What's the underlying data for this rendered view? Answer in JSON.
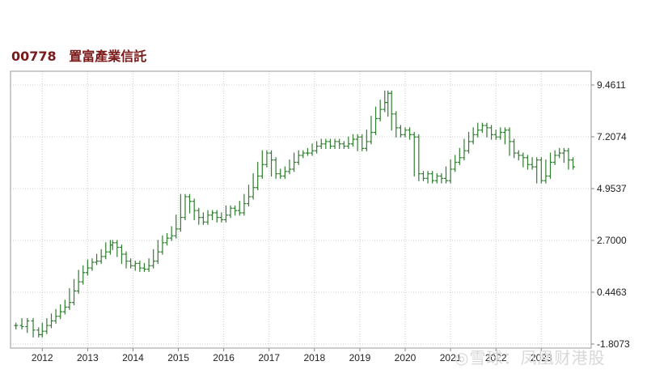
{
  "header": {
    "code": "00778",
    "name": "置富產業信託"
  },
  "watermark": "◎雪球：凤凰财港股",
  "colors": {
    "line": "#2f7d2f",
    "grid": "#cccccc",
    "axis": "#888888",
    "title": "#7a1a1a"
  },
  "chart_data": {
    "type": "line",
    "style": "OHLC bars",
    "title": "",
    "xlabel": "",
    "ylabel": "",
    "x_ticks": [
      "2012",
      "2013",
      "2014",
      "2015",
      "2016",
      "2017",
      "2018",
      "2019",
      "2020",
      "2021",
      "2022",
      "2023"
    ],
    "y_ticks": [
      "9.4611",
      "7.2074",
      "4.9537",
      "2.7000",
      "0.4463",
      "-1.8073"
    ],
    "ylim": [
      -1.8073,
      9.4611
    ],
    "xlim": [
      2011.3,
      2024.1
    ],
    "grid": true,
    "y_axis_position": "right",
    "series": [
      {
        "values": [
          [
            2011.42,
            -1.0
          ],
          [
            2011.55,
            -1.05
          ],
          [
            2011.67,
            -0.8
          ],
          [
            2011.8,
            -1.2
          ],
          [
            2011.92,
            -1.4
          ],
          [
            2012.0,
            -1.25
          ],
          [
            2012.1,
            -1.0
          ],
          [
            2012.2,
            -0.8
          ],
          [
            2012.3,
            -0.6
          ],
          [
            2012.4,
            -0.4
          ],
          [
            2012.5,
            -0.2
          ],
          [
            2012.6,
            0.0
          ],
          [
            2012.7,
            0.5
          ],
          [
            2012.8,
            0.9
          ],
          [
            2012.9,
            1.3
          ],
          [
            2013.0,
            1.5
          ],
          [
            2013.1,
            1.75
          ],
          [
            2013.2,
            1.8
          ],
          [
            2013.3,
            2.0
          ],
          [
            2013.4,
            2.2
          ],
          [
            2013.5,
            2.5
          ],
          [
            2013.55,
            2.6
          ],
          [
            2013.65,
            2.4
          ],
          [
            2013.75,
            2.1
          ],
          [
            2013.85,
            1.8
          ],
          [
            2013.95,
            1.6
          ],
          [
            2014.05,
            1.7
          ],
          [
            2014.15,
            1.5
          ],
          [
            2014.25,
            1.45
          ],
          [
            2014.35,
            1.6
          ],
          [
            2014.45,
            1.8
          ],
          [
            2014.55,
            2.2
          ],
          [
            2014.65,
            2.6
          ],
          [
            2014.75,
            2.8
          ],
          [
            2014.85,
            2.9
          ],
          [
            2014.95,
            3.2
          ],
          [
            2015.05,
            3.7
          ],
          [
            2015.15,
            4.6
          ],
          [
            2015.25,
            4.4
          ],
          [
            2015.35,
            4.0
          ],
          [
            2015.45,
            3.7
          ],
          [
            2015.55,
            3.5
          ],
          [
            2015.65,
            3.8
          ],
          [
            2015.75,
            3.9
          ],
          [
            2015.85,
            3.7
          ],
          [
            2015.95,
            3.6
          ],
          [
            2016.05,
            3.8
          ],
          [
            2016.15,
            4.1
          ],
          [
            2016.25,
            4.0
          ],
          [
            2016.35,
            3.9
          ],
          [
            2016.45,
            4.3
          ],
          [
            2016.55,
            4.6
          ],
          [
            2016.65,
            5.0
          ],
          [
            2016.75,
            5.5
          ],
          [
            2016.85,
            6.0
          ],
          [
            2016.95,
            6.5
          ],
          [
            2017.05,
            6.2
          ],
          [
            2017.15,
            5.6
          ],
          [
            2017.25,
            5.5
          ],
          [
            2017.35,
            5.7
          ],
          [
            2017.45,
            5.8
          ],
          [
            2017.55,
            6.1
          ],
          [
            2017.65,
            6.4
          ],
          [
            2017.75,
            6.5
          ],
          [
            2017.85,
            6.5
          ],
          [
            2017.95,
            6.6
          ],
          [
            2018.05,
            6.8
          ],
          [
            2018.15,
            6.9
          ],
          [
            2018.25,
            7.0
          ],
          [
            2018.35,
            6.8
          ],
          [
            2018.45,
            7.0
          ],
          [
            2018.55,
            6.9
          ],
          [
            2018.65,
            6.8
          ],
          [
            2018.75,
            6.9
          ],
          [
            2018.85,
            7.1
          ],
          [
            2018.95,
            7.2
          ],
          [
            2019.05,
            6.7
          ],
          [
            2019.15,
            7.0
          ],
          [
            2019.25,
            7.4
          ],
          [
            2019.35,
            8.0
          ],
          [
            2019.45,
            8.4
          ],
          [
            2019.55,
            8.7
          ],
          [
            2019.62,
            9.1
          ],
          [
            2019.7,
            8.2
          ],
          [
            2019.8,
            7.6
          ],
          [
            2019.9,
            7.3
          ],
          [
            2020.0,
            7.5
          ],
          [
            2020.1,
            7.3
          ],
          [
            2020.2,
            7.2
          ],
          [
            2020.3,
            5.6
          ],
          [
            2020.4,
            5.4
          ],
          [
            2020.5,
            5.6
          ],
          [
            2020.6,
            5.3
          ],
          [
            2020.7,
            5.5
          ],
          [
            2020.8,
            5.4
          ],
          [
            2020.9,
            5.3
          ],
          [
            2021.0,
            5.8
          ],
          [
            2021.1,
            6.1
          ],
          [
            2021.2,
            6.3
          ],
          [
            2021.3,
            6.6
          ],
          [
            2021.4,
            7.0
          ],
          [
            2021.5,
            7.3
          ],
          [
            2021.6,
            7.5
          ],
          [
            2021.7,
            7.7
          ],
          [
            2021.8,
            7.6
          ],
          [
            2021.9,
            7.3
          ],
          [
            2022.0,
            7.2
          ],
          [
            2022.1,
            7.4
          ],
          [
            2022.2,
            7.5
          ],
          [
            2022.3,
            7.0
          ],
          [
            2022.4,
            6.5
          ],
          [
            2022.5,
            6.4
          ],
          [
            2022.6,
            6.3
          ],
          [
            2022.7,
            6.0
          ],
          [
            2022.8,
            5.9
          ],
          [
            2022.9,
            6.2
          ],
          [
            2023.0,
            5.3
          ],
          [
            2023.1,
            5.5
          ],
          [
            2023.2,
            6.1
          ],
          [
            2023.3,
            6.4
          ],
          [
            2023.4,
            6.5
          ],
          [
            2023.5,
            6.6
          ],
          [
            2023.6,
            6.2
          ],
          [
            2023.7,
            5.9
          ]
        ]
      }
    ]
  }
}
